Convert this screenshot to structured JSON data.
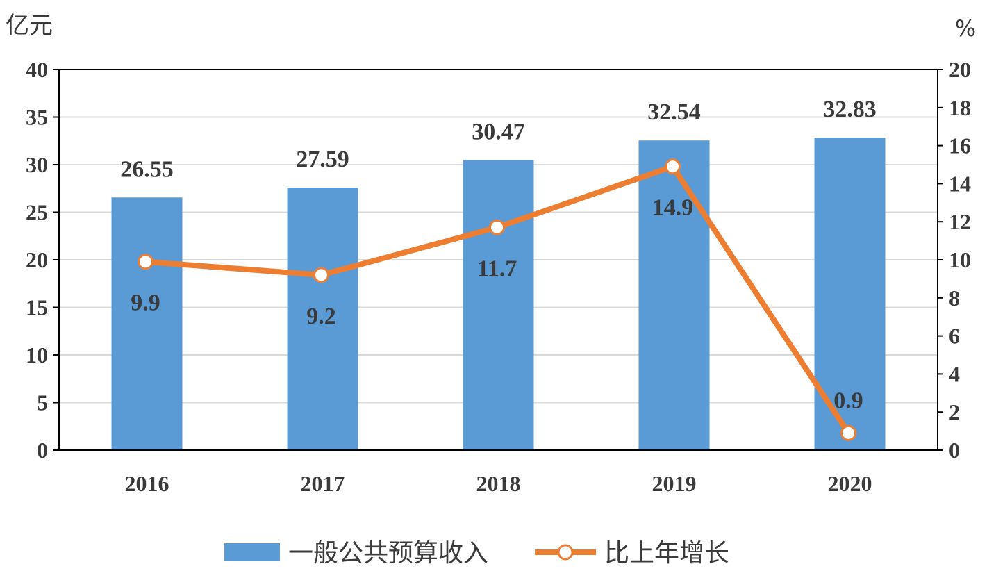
{
  "chart_data": {
    "type": "bar",
    "categories": [
      "2016",
      "2017",
      "2018",
      "2019",
      "2020"
    ],
    "series": [
      {
        "name": "一般公共预算收入",
        "type": "bar",
        "axis": "left",
        "values": [
          26.55,
          27.59,
          30.47,
          32.54,
          32.83
        ],
        "labels": [
          "26.55",
          "27.59",
          "30.47",
          "32.54",
          "32.83"
        ],
        "color": "#5b9bd5"
      },
      {
        "name": "比上年增长",
        "type": "line",
        "axis": "right",
        "values": [
          9.9,
          9.2,
          11.7,
          14.9,
          0.9
        ],
        "labels": [
          "9.9",
          "9.2",
          "11.7",
          "14.9",
          "0.9"
        ],
        "color": "#ed7d31"
      }
    ],
    "y_left": {
      "unit": "亿元",
      "ylim": [
        0,
        40
      ],
      "ticks": [
        "0",
        "5",
        "10",
        "15",
        "20",
        "25",
        "30",
        "35",
        "40"
      ]
    },
    "y_right": {
      "unit": "%",
      "ylim": [
        0,
        20
      ],
      "ticks": [
        "0",
        "2",
        "4",
        "6",
        "8",
        "10",
        "12",
        "14",
        "16",
        "18",
        "20"
      ]
    },
    "grid": true,
    "legend_position": "bottom"
  }
}
